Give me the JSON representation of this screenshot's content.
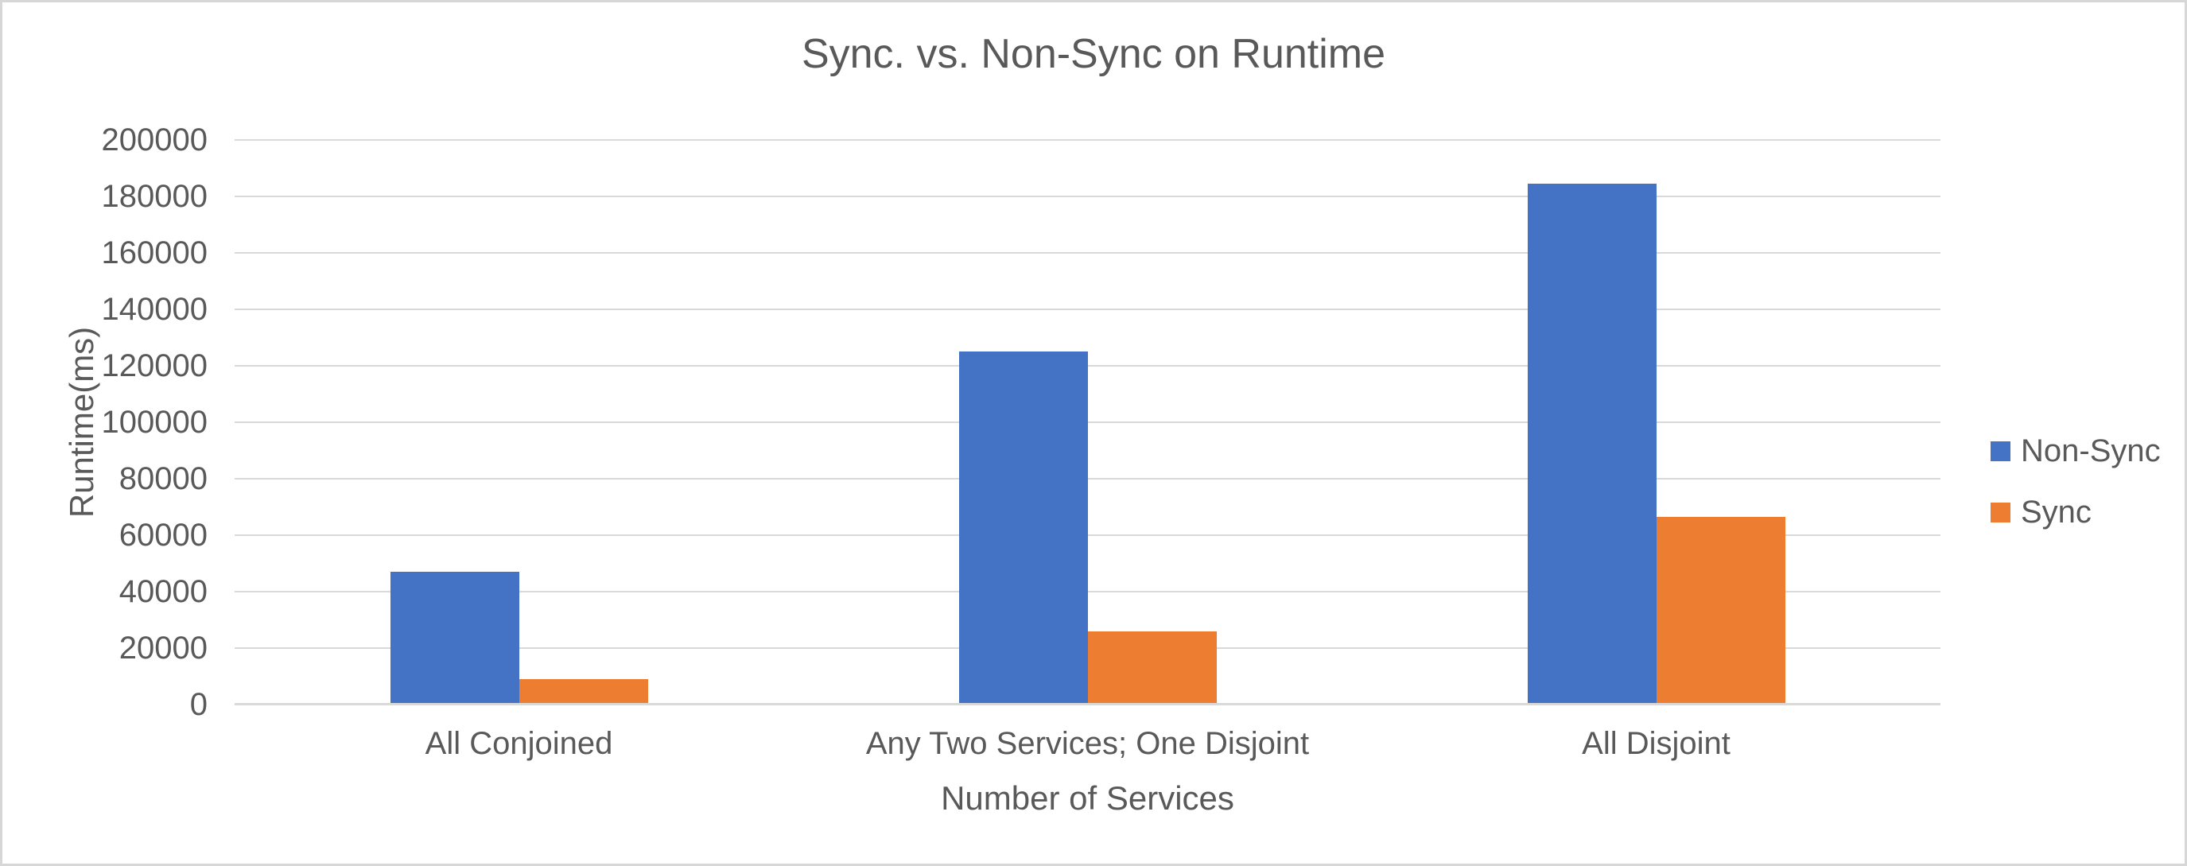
{
  "window": {
    "background": "#ffffff",
    "border_color": "#d7d7d7"
  },
  "chart_data": {
    "type": "bar",
    "title": "Sync. vs. Non-Sync on Runtime",
    "xlabel": "Number of Services",
    "ylabel": "Runtime(ms)",
    "categories": [
      "All Conjoined",
      "Any Two Services; One Disjoint",
      "All Disjoint"
    ],
    "series": [
      {
        "name": "Non-Sync",
        "color": "#4472C4",
        "values": [
          47000,
          125000,
          184500
        ]
      },
      {
        "name": "Sync",
        "color": "#ED7D31",
        "values": [
          9000,
          26000,
          66500
        ]
      }
    ],
    "ylim": [
      0,
      200000
    ],
    "ytick_step": 20000,
    "ytick_labels": [
      "0",
      "20000",
      "40000",
      "60000",
      "80000",
      "100000",
      "120000",
      "140000",
      "160000",
      "180000",
      "200000"
    ],
    "grid": true,
    "legend_position": "right",
    "text_color": "#595959",
    "gridline_color": "#D9D9D9"
  }
}
